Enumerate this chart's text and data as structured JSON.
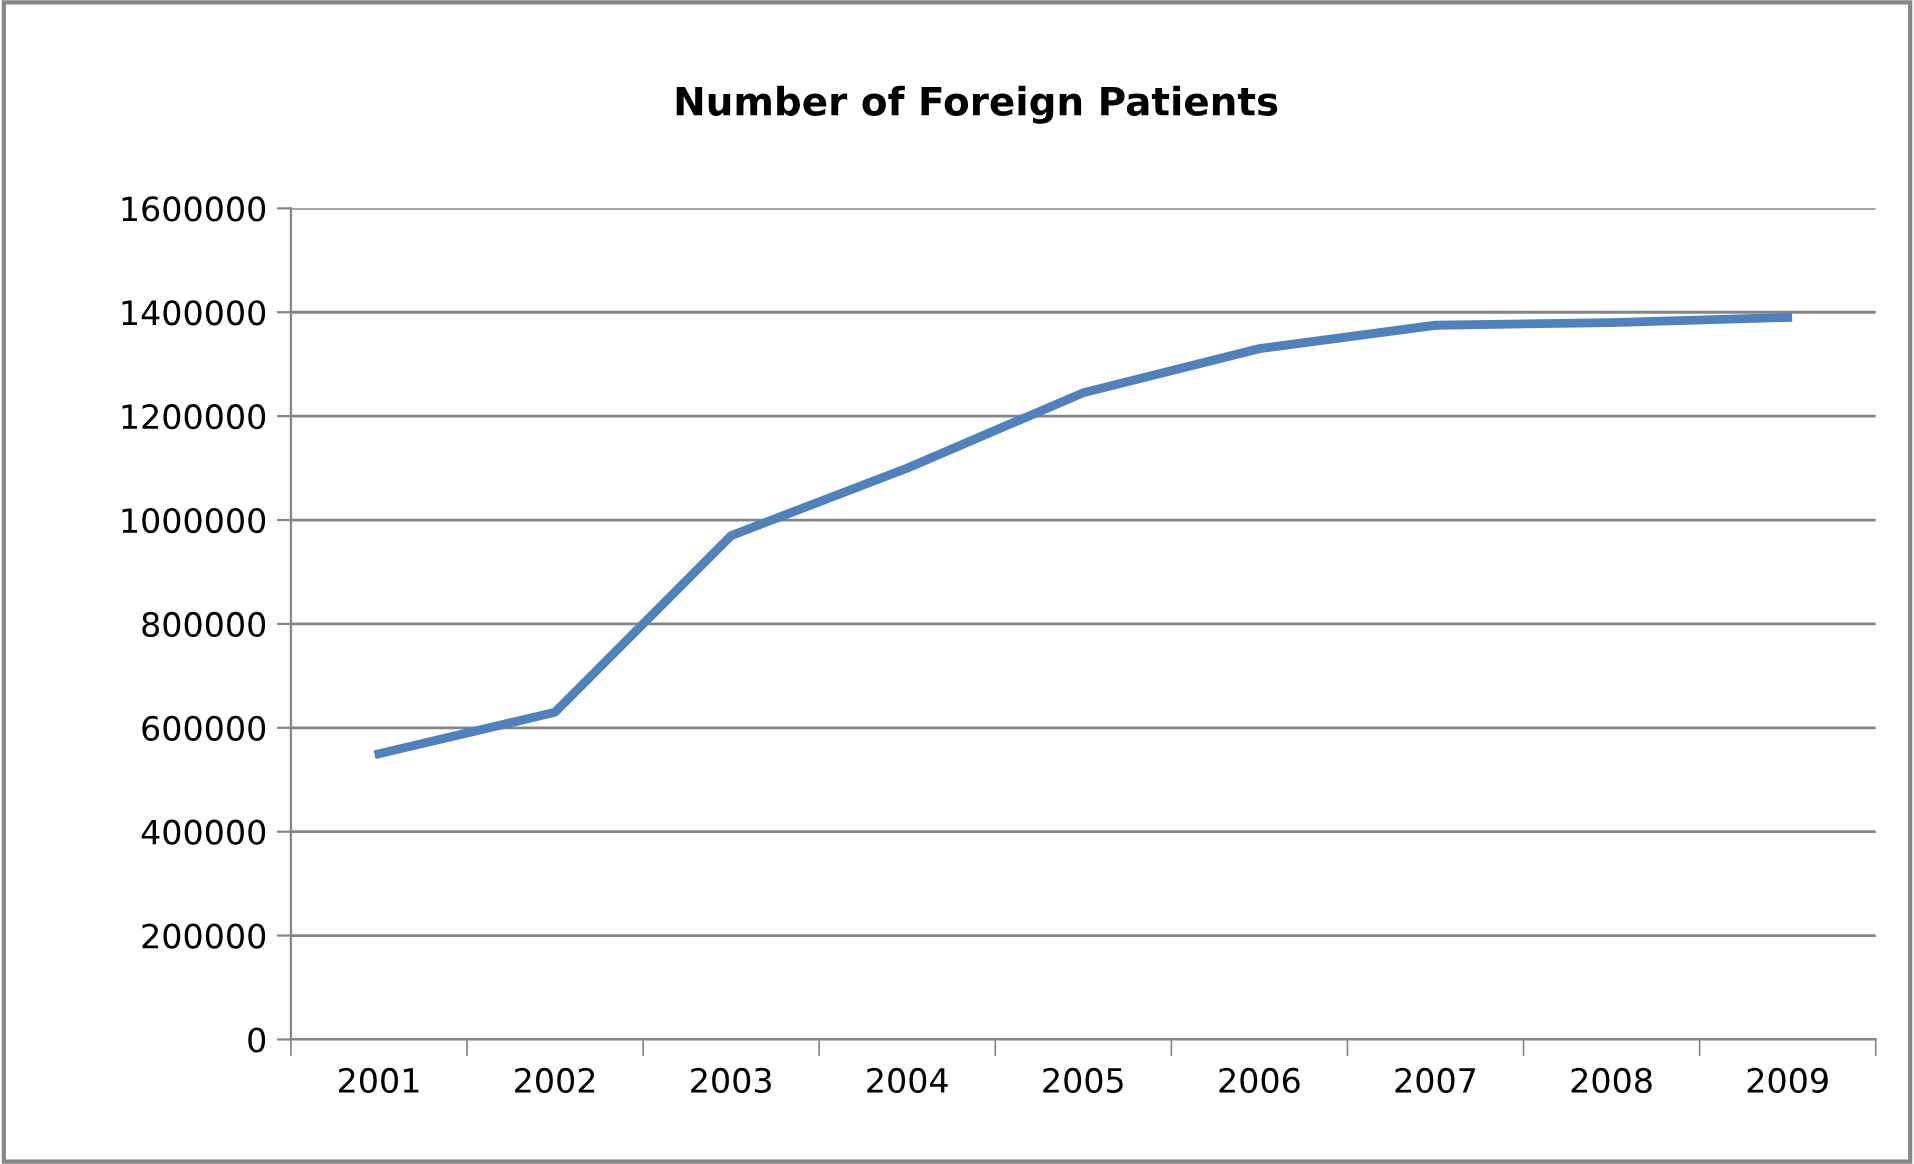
{
  "chart_data": {
    "type": "line",
    "title": "Number of Foreign Patients",
    "categories": [
      "2001",
      "2002",
      "2003",
      "2004",
      "2005",
      "2006",
      "2007",
      "2008",
      "2009"
    ],
    "series": [
      {
        "color": "#4f81bd",
        "values": [
          550000,
          630000,
          970000,
          1100000,
          1245000,
          1330000,
          1375000,
          1380000,
          1390000
        ]
      }
    ],
    "ylim": [
      0,
      1600000
    ],
    "yticks": [
      0,
      200000,
      400000,
      600000,
      800000,
      1000000,
      1200000,
      1400000,
      1600000
    ],
    "grid": "y",
    "legend": false,
    "marker": "none",
    "line_style": "solid"
  }
}
